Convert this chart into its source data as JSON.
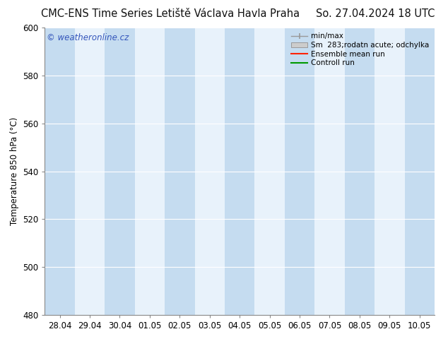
{
  "title_left": "CMC-ENS Time Series Letiště Václava Havla Praha",
  "title_right": "So. 27.04.2024 18 UTC",
  "ylabel": "Temperature 850 hPa (°C)",
  "ylim": [
    480,
    600
  ],
  "yticks": [
    480,
    500,
    520,
    540,
    560,
    580,
    600
  ],
  "x_labels": [
    "28.04",
    "29.04",
    "30.04",
    "01.05",
    "02.05",
    "03.05",
    "04.05",
    "05.05",
    "06.05",
    "07.05",
    "08.05",
    "09.05",
    "10.05"
  ],
  "background_color": "#ffffff",
  "plot_bg_color": "#ddeeff",
  "band_dark_color": "#c5dcf0",
  "band_light_color": "#e8f2fb",
  "watermark": "© weatheronline.cz",
  "watermark_color": "#3355bb",
  "legend_entries": [
    "min/max",
    "Sm  283;rodatn acute; odchylka",
    "Ensemble mean run",
    "Controll run"
  ],
  "legend_colors_lines": [
    "#999999",
    "#cccccc",
    "#ff2200",
    "#009900"
  ],
  "title_fontsize": 10.5,
  "tick_fontsize": 8.5,
  "ylabel_fontsize": 8.5,
  "legend_fontsize": 7.5
}
